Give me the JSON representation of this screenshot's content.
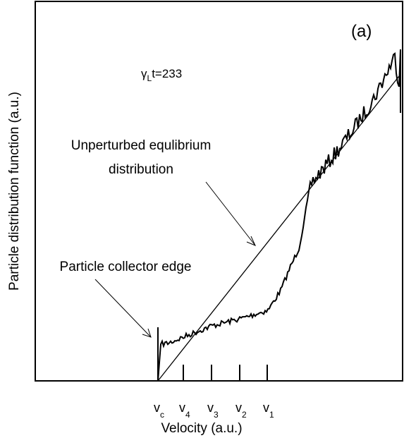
{
  "chart_data": {
    "type": "line",
    "panel_label": "(a)",
    "annotation_time": {
      "symbol": "γ",
      "sub": "L",
      "rest": "t=233"
    },
    "annotation_equilibrium": [
      "Unperturbed equlibrium",
      "distribution"
    ],
    "annotation_edge": "Particle collector edge",
    "xlabel": "Velocity (a.u.)",
    "ylabel": "Particle distribution function (a.u.)",
    "xtick_labels": [
      {
        "base": "v",
        "sub": "c"
      },
      {
        "base": "v",
        "sub": "4"
      },
      {
        "base": "v",
        "sub": "3"
      },
      {
        "base": "v",
        "sub": "2"
      },
      {
        "base": "v",
        "sub": "1"
      }
    ]
  }
}
